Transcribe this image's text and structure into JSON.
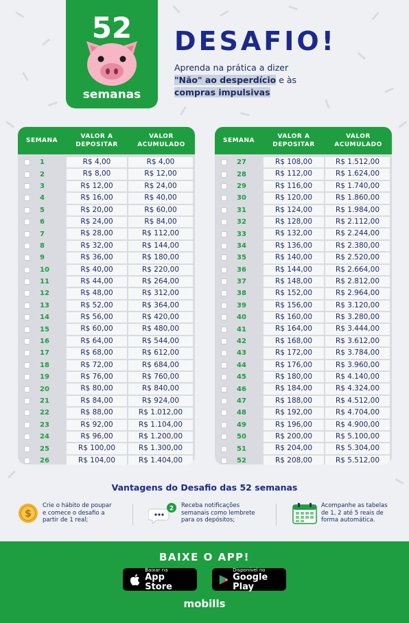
{
  "header": {
    "logo_number": "52",
    "logo_word": "semanas",
    "title": "DESAFIO!",
    "subtitle_part1": "Aprenda na prática a dizer",
    "subtitle_highlight1": "\"Não\" ao desperdício",
    "subtitle_part2": " e às",
    "subtitle_highlight2": "compras impulsivas"
  },
  "table": {
    "headers": {
      "week": "SEMANA",
      "deposit_line1": "VALOR A",
      "deposit_line2": "DEPOSITAR",
      "accum_line1": "VALOR",
      "accum_line2": "ACUMULADO"
    },
    "rows": [
      {
        "week": "1",
        "deposit": "R$ 4,00",
        "accum": "R$ 4,00"
      },
      {
        "week": "2",
        "deposit": "R$ 8,00",
        "accum": "R$ 12,00"
      },
      {
        "week": "3",
        "deposit": "R$ 12,00",
        "accum": "R$ 24,00"
      },
      {
        "week": "4",
        "deposit": "R$ 16,00",
        "accum": "R$ 40,00"
      },
      {
        "week": "5",
        "deposit": "R$ 20,00",
        "accum": "R$ 60,00"
      },
      {
        "week": "6",
        "deposit": "R$ 24,00",
        "accum": "R$ 84,00"
      },
      {
        "week": "7",
        "deposit": "R$ 28,00",
        "accum": "R$ 112,00"
      },
      {
        "week": "8",
        "deposit": "R$ 32,00",
        "accum": "R$ 144,00"
      },
      {
        "week": "9",
        "deposit": "R$ 36,00",
        "accum": "R$ 180,00"
      },
      {
        "week": "10",
        "deposit": "R$ 40,00",
        "accum": "R$ 220,00"
      },
      {
        "week": "11",
        "deposit": "R$ 44,00",
        "accum": "R$ 264,00"
      },
      {
        "week": "12",
        "deposit": "R$ 48,00",
        "accum": "R$ 312,00"
      },
      {
        "week": "13",
        "deposit": "R$ 52,00",
        "accum": "R$ 364,00"
      },
      {
        "week": "14",
        "deposit": "R$ 56,00",
        "accum": "R$ 420,00"
      },
      {
        "week": "15",
        "deposit": "R$ 60,00",
        "accum": "R$ 480,00"
      },
      {
        "week": "16",
        "deposit": "R$ 64,00",
        "accum": "R$ 544,00"
      },
      {
        "week": "17",
        "deposit": "R$ 68,00",
        "accum": "R$ 612,00"
      },
      {
        "week": "18",
        "deposit": "R$ 72,00",
        "accum": "R$ 684,00"
      },
      {
        "week": "19",
        "deposit": "R$ 76,00",
        "accum": "R$ 760,00"
      },
      {
        "week": "20",
        "deposit": "R$ 80,00",
        "accum": "R$ 840,00"
      },
      {
        "week": "21",
        "deposit": "R$ 84,00",
        "accum": "R$ 924,00"
      },
      {
        "week": "22",
        "deposit": "R$ 88,00",
        "accum": "R$ 1.012,00"
      },
      {
        "week": "23",
        "deposit": "R$ 92,00",
        "accum": "R$ 1.104,00"
      },
      {
        "week": "24",
        "deposit": "R$ 96,00",
        "accum": "R$ 1.200,00"
      },
      {
        "week": "25",
        "deposit": "R$ 100,00",
        "accum": "R$ 1.300,00"
      },
      {
        "week": "26",
        "deposit": "R$ 104,00",
        "accum": "R$ 1.404,00"
      },
      {
        "week": "27",
        "deposit": "R$ 108,00",
        "accum": "R$ 1.512,00"
      },
      {
        "week": "28",
        "deposit": "R$ 112,00",
        "accum": "R$ 1.624,00"
      },
      {
        "week": "29",
        "deposit": "R$ 116,00",
        "accum": "R$ 1.740,00"
      },
      {
        "week": "30",
        "deposit": "R$ 120,00",
        "accum": "R$ 1.860,00"
      },
      {
        "week": "31",
        "deposit": "R$ 124,00",
        "accum": "R$ 1.984,00"
      },
      {
        "week": "32",
        "deposit": "R$ 128,00",
        "accum": "R$ 2.112,00"
      },
      {
        "week": "33",
        "deposit": "R$ 132,00",
        "accum": "R$ 2.244,00"
      },
      {
        "week": "34",
        "deposit": "R$ 136,00",
        "accum": "R$ 2.380,00"
      },
      {
        "week": "35",
        "deposit": "R$ 140,00",
        "accum": "R$ 2.520,00"
      },
      {
        "week": "36",
        "deposit": "R$ 144,00",
        "accum": "R$ 2.664,00"
      },
      {
        "week": "37",
        "deposit": "R$ 148,00",
        "accum": "R$ 2.812,00"
      },
      {
        "week": "38",
        "deposit": "R$ 152,00",
        "accum": "R$ 2.964,00"
      },
      {
        "week": "39",
        "deposit": "R$ 156,00",
        "accum": "R$ 3.120,00"
      },
      {
        "week": "40",
        "deposit": "R$ 160,00",
        "accum": "R$ 3.280,00"
      },
      {
        "week": "41",
        "deposit": "R$ 164,00",
        "accum": "R$ 3.444,00"
      },
      {
        "week": "42",
        "deposit": "R$ 168,00",
        "accum": "R$ 3.612,00"
      },
      {
        "week": "43",
        "deposit": "R$ 172,00",
        "accum": "R$ 3.784,00"
      },
      {
        "week": "44",
        "deposit": "R$ 176,00",
        "accum": "R$ 3.960,00"
      },
      {
        "week": "45",
        "deposit": "R$ 180,00",
        "accum": "R$ 4.140,00"
      },
      {
        "week": "46",
        "deposit": "R$ 184,00",
        "accum": "R$ 4.324,00"
      },
      {
        "week": "47",
        "deposit": "R$ 188,00",
        "accum": "R$ 4.512,00"
      },
      {
        "week": "48",
        "deposit": "R$ 192,00",
        "accum": "R$ 4.704,00"
      },
      {
        "week": "49",
        "deposit": "R$ 196,00",
        "accum": "R$ 4.900,00"
      },
      {
        "week": "50",
        "deposit": "R$ 200,00",
        "accum": "R$ 5.100,00"
      },
      {
        "week": "51",
        "deposit": "R$ 204,00",
        "accum": "R$ 5.304,00"
      },
      {
        "week": "52",
        "deposit": "R$ 208,00",
        "accum": "R$ 5.512,00"
      }
    ]
  },
  "advantages": {
    "title": "Vantagens do Desafio das 52 semanas",
    "items": [
      {
        "icon": "coin-icon",
        "lines": [
          "Crie o hábito de poupar",
          "e comece o desafio a",
          "partir de 1 real;"
        ]
      },
      {
        "icon": "notification-bubble-icon",
        "badge": "2",
        "lines": [
          "Receba notificações",
          "semanais como lembrete",
          "para os depósitos;"
        ]
      },
      {
        "icon": "calendar-icon",
        "lines": [
          "Acompanhe as tabelas",
          "de 1, 2 até 5 reais de",
          "forma automática."
        ]
      }
    ]
  },
  "footer": {
    "cta": "BAIXE O APP!",
    "app_store_small": "Baixar na",
    "app_store_big": "App Store",
    "google_play_small": "Disponível no",
    "google_play_big": "Google Play",
    "brand": "mobills"
  },
  "colors": {
    "green": "#1e9e40",
    "navy": "#1b2a8a",
    "pink": "#f4a8b8"
  }
}
